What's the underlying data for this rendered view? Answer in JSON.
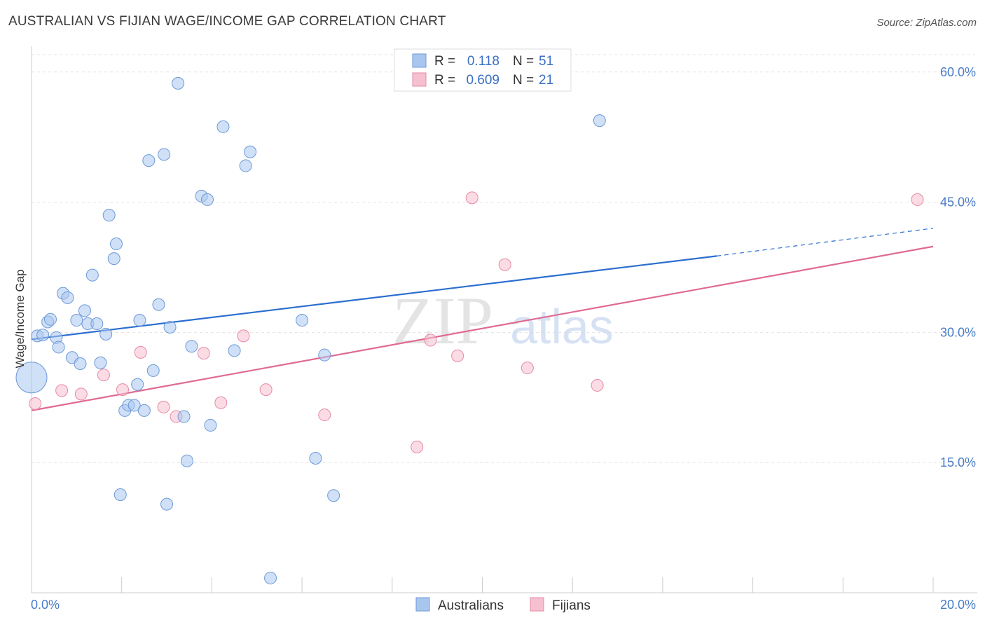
{
  "header": {
    "title": "AUSTRALIAN VS FIJIAN WAGE/INCOME GAP CORRELATION CHART",
    "source": "Source: ZipAtlas.com"
  },
  "colors": {
    "australians_fill": "#a9c6ee",
    "australians_stroke": "#6d9ad8",
    "australians_line": "#2a6ed0",
    "fijians_fill": "#f7c0d0",
    "fijians_stroke": "#e68aa6",
    "fijians_line": "#e06a90",
    "tick_text": "#4a7cc9",
    "grid": "#e3e3e3"
  },
  "legend": {
    "rows": [
      {
        "r_label": "R =",
        "r_value": "0.118",
        "n_label": "N =",
        "n_value": "51"
      },
      {
        "r_label": "R =",
        "r_value": "0.609",
        "n_label": "N =",
        "n_value": "21"
      }
    ]
  },
  "bottom_legend": {
    "items": [
      "Australians",
      "Fijians"
    ]
  },
  "watermark": {
    "zip": "ZIP",
    "atlas": "atlas"
  },
  "chart_data": {
    "type": "scatter",
    "title": "AUSTRALIAN VS FIJIAN WAGE/INCOME GAP CORRELATION CHART",
    "xlabel": "",
    "ylabel": "Wage/Income Gap",
    "xlim": [
      0,
      20
    ],
    "ylim": [
      0,
      62
    ],
    "x_tick_labels": [
      "0.0%",
      "20.0%"
    ],
    "y_ticks": [
      15,
      30,
      45,
      60
    ],
    "y_tick_labels": [
      "15.0%",
      "30.0%",
      "45.0%",
      "60.0%"
    ],
    "grid": true,
    "legend_position": "top-center",
    "series": [
      {
        "name": "Australians",
        "r": 0.118,
        "n": 51,
        "trend": {
          "x0": 0,
          "y0": 29.2,
          "x1": 15.2,
          "y1": 38.8,
          "dashed_to_x": 20,
          "dashed_to_y": 42.0
        },
        "points": [
          {
            "x": 0.0,
            "y": 24.8,
            "big": true
          },
          {
            "x": 0.13,
            "y": 29.6
          },
          {
            "x": 0.25,
            "y": 29.7
          },
          {
            "x": 0.36,
            "y": 31.2
          },
          {
            "x": 0.42,
            "y": 31.5
          },
          {
            "x": 0.55,
            "y": 29.4
          },
          {
            "x": 0.6,
            "y": 28.3
          },
          {
            "x": 0.7,
            "y": 34.5
          },
          {
            "x": 0.8,
            "y": 34.0
          },
          {
            "x": 0.9,
            "y": 27.1
          },
          {
            "x": 1.0,
            "y": 31.4
          },
          {
            "x": 1.08,
            "y": 26.4
          },
          {
            "x": 1.18,
            "y": 32.5
          },
          {
            "x": 1.25,
            "y": 31.0
          },
          {
            "x": 1.35,
            "y": 36.6
          },
          {
            "x": 1.45,
            "y": 31.0
          },
          {
            "x": 1.53,
            "y": 26.5
          },
          {
            "x": 1.65,
            "y": 29.8
          },
          {
            "x": 1.72,
            "y": 43.5
          },
          {
            "x": 1.83,
            "y": 38.5
          },
          {
            "x": 1.88,
            "y": 40.2
          },
          {
            "x": 1.97,
            "y": 11.3
          },
          {
            "x": 2.07,
            "y": 21.0
          },
          {
            "x": 2.15,
            "y": 21.6
          },
          {
            "x": 2.28,
            "y": 21.6
          },
          {
            "x": 2.35,
            "y": 24.0
          },
          {
            "x": 2.4,
            "y": 31.4
          },
          {
            "x": 2.5,
            "y": 21.0
          },
          {
            "x": 2.6,
            "y": 49.8
          },
          {
            "x": 2.7,
            "y": 25.6
          },
          {
            "x": 2.82,
            "y": 33.2
          },
          {
            "x": 2.94,
            "y": 50.5
          },
          {
            "x": 3.0,
            "y": 10.2
          },
          {
            "x": 3.07,
            "y": 30.6
          },
          {
            "x": 3.25,
            "y": 58.7
          },
          {
            "x": 3.38,
            "y": 20.3
          },
          {
            "x": 3.45,
            "y": 15.2
          },
          {
            "x": 3.55,
            "y": 28.4
          },
          {
            "x": 3.77,
            "y": 45.7
          },
          {
            "x": 3.9,
            "y": 45.3
          },
          {
            "x": 3.97,
            "y": 19.3
          },
          {
            "x": 4.25,
            "y": 53.7
          },
          {
            "x": 4.5,
            "y": 27.9
          },
          {
            "x": 4.75,
            "y": 49.2
          },
          {
            "x": 4.85,
            "y": 50.8
          },
          {
            "x": 5.3,
            "y": 1.7
          },
          {
            "x": 6.0,
            "y": 31.4
          },
          {
            "x": 6.3,
            "y": 15.5
          },
          {
            "x": 6.5,
            "y": 27.4
          },
          {
            "x": 6.7,
            "y": 11.2
          },
          {
            "x": 12.6,
            "y": 54.4
          }
        ]
      },
      {
        "name": "Fijians",
        "r": 0.609,
        "n": 21,
        "trend": {
          "x0": 0,
          "y0": 21.0,
          "x1": 20,
          "y1": 39.9
        },
        "points": [
          {
            "x": 0.08,
            "y": 21.8
          },
          {
            "x": 0.67,
            "y": 23.3
          },
          {
            "x": 1.1,
            "y": 22.9
          },
          {
            "x": 1.6,
            "y": 25.1
          },
          {
            "x": 2.02,
            "y": 23.4
          },
          {
            "x": 2.42,
            "y": 27.7
          },
          {
            "x": 2.93,
            "y": 21.4
          },
          {
            "x": 3.21,
            "y": 20.3
          },
          {
            "x": 3.82,
            "y": 27.6
          },
          {
            "x": 4.2,
            "y": 21.9
          },
          {
            "x": 4.7,
            "y": 29.6
          },
          {
            "x": 5.2,
            "y": 23.4
          },
          {
            "x": 6.5,
            "y": 20.5
          },
          {
            "x": 8.55,
            "y": 16.8
          },
          {
            "x": 8.85,
            "y": 29.1
          },
          {
            "x": 9.45,
            "y": 27.3
          },
          {
            "x": 9.77,
            "y": 45.5
          },
          {
            "x": 10.5,
            "y": 37.8
          },
          {
            "x": 11.0,
            "y": 25.9
          },
          {
            "x": 12.55,
            "y": 23.9
          },
          {
            "x": 19.65,
            "y": 45.3
          }
        ]
      }
    ]
  }
}
